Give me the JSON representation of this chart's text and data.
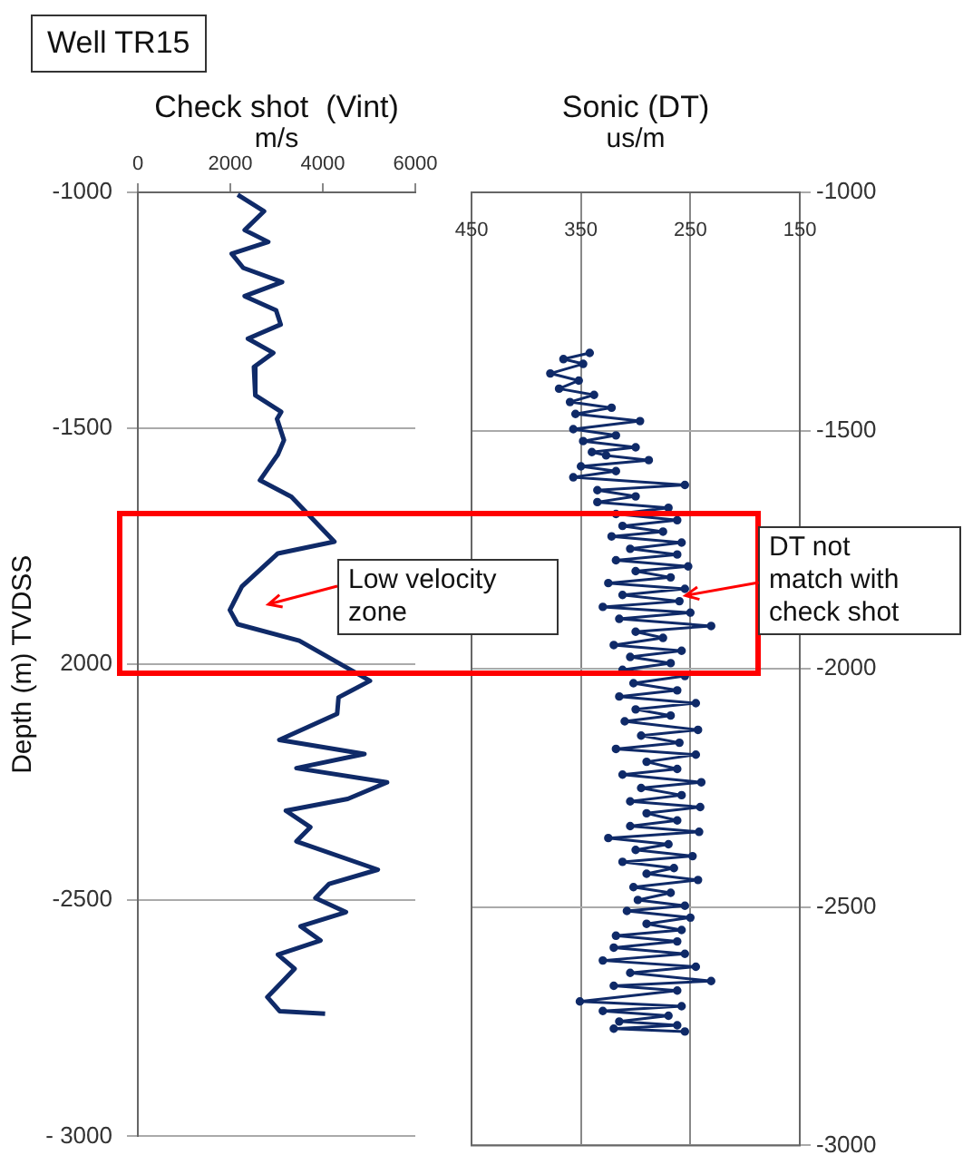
{
  "chart_data": [
    {
      "type": "line",
      "title": "Check shot  (Vint)",
      "xlabel": "m/s",
      "ylabel": "Depth (m) TVDSS",
      "series": [
        {
          "color": "#0f2a68",
          "x": [
            2160,
            2730,
            2310,
            2820,
            2030,
            2280,
            3120,
            2310,
            2990,
            3090,
            2380,
            2930,
            2510,
            2540,
            3100,
            3010,
            3160,
            3030,
            2640,
            3320,
            4250,
            3030,
            2250,
            1990,
            2160,
            3490,
            5020,
            4340,
            4310,
            3060,
            4900,
            3430,
            5390,
            4540,
            3200,
            3730,
            3430,
            5190,
            4140,
            3840,
            4500,
            3520,
            3950,
            3030,
            3390,
            3100,
            2800,
            3070,
            4050
          ],
          "values": [
            -1005,
            -1040,
            -1080,
            -1105,
            -1130,
            -1160,
            -1190,
            -1220,
            -1250,
            -1280,
            -1310,
            -1340,
            -1370,
            -1430,
            -1465,
            -1480,
            -1525,
            -1555,
            -1610,
            -1645,
            -1740,
            -1765,
            -1835,
            -1885,
            -1915,
            -1950,
            -2035,
            -2070,
            -2105,
            -2160,
            -2190,
            -2220,
            -2250,
            -2285,
            -2310,
            -2345,
            -2375,
            -2435,
            -2465,
            -2495,
            -2525,
            -2555,
            -2585,
            -2615,
            -2645,
            -2675,
            -2705,
            -2735,
            -2740
          ]
        }
      ],
      "xlim": [
        0,
        6000
      ],
      "xticks": [
        0,
        2000,
        4000,
        6000
      ],
      "ylim": [
        -3000,
        -1000
      ],
      "yticks": [
        -1000,
        -1500,
        {
          "value": -2000,
          "label": "2000"
        },
        -2500,
        {
          "value": -3000,
          "label": "- 3000"
        }
      ],
      "grid": "y",
      "marker": "none",
      "annotations": [
        "Well TR15",
        "Low velocity zone"
      ]
    },
    {
      "type": "line",
      "title": "Sonic (DT)",
      "xlabel": "us/m",
      "series": [
        {
          "color": "#0f2a68",
          "x": [
            342,
            366,
            348,
            378,
            352,
            370,
            338,
            360,
            322,
            355,
            296,
            357,
            318,
            348,
            300,
            340,
            327,
            288,
            350,
            318,
            357,
            255,
            335,
            300,
            335,
            270,
            318,
            262,
            312,
            275,
            322,
            258,
            305,
            262,
            318,
            252,
            300,
            268,
            325,
            255,
            312,
            260,
            330,
            250,
            315,
            231,
            300,
            275,
            320,
            258,
            305,
            268,
            312,
            255,
            302,
            262,
            315,
            245,
            300,
            268,
            310,
            243,
            295,
            260,
            318,
            245,
            290,
            262,
            312,
            240,
            295,
            258,
            305,
            241,
            290,
            262,
            305,
            242,
            325,
            270,
            300,
            248,
            312,
            265,
            290,
            243,
            302,
            268,
            298,
            255,
            308,
            250,
            290,
            258,
            318,
            262,
            320,
            255,
            330,
            245,
            305,
            231,
            320,
            262,
            351,
            258,
            330,
            270,
            315,
            262,
            320,
            255
          ],
          "values": [
            -1337,
            -1350,
            -1360,
            -1380,
            -1395,
            -1412,
            -1425,
            -1440,
            -1452,
            -1465,
            -1480,
            -1497,
            -1510,
            -1522,
            -1535,
            -1545,
            -1552,
            -1562,
            -1575,
            -1585,
            -1598,
            -1614,
            -1625,
            -1638,
            -1650,
            -1662,
            -1675,
            -1688,
            -1700,
            -1712,
            -1722,
            -1735,
            -1748,
            -1760,
            -1772,
            -1785,
            -1795,
            -1808,
            -1820,
            -1832,
            -1845,
            -1858,
            -1870,
            -1882,
            -1895,
            -1910,
            -1922,
            -1935,
            -1950,
            -1962,
            -1975,
            -1988,
            -2002,
            -2015,
            -2030,
            -2045,
            -2058,
            -2072,
            -2085,
            -2098,
            -2110,
            -2128,
            -2140,
            -2155,
            -2168,
            -2180,
            -2195,
            -2210,
            -2222,
            -2238,
            -2250,
            -2265,
            -2278,
            -2290,
            -2303,
            -2318,
            -2330,
            -2342,
            -2355,
            -2368,
            -2380,
            -2393,
            -2405,
            -2418,
            -2430,
            -2443,
            -2458,
            -2470,
            -2485,
            -2497,
            -2508,
            -2522,
            -2535,
            -2548,
            -2560,
            -2572,
            -2585,
            -2598,
            -2612,
            -2625,
            -2638,
            -2655,
            -2665,
            -2675,
            -2698,
            -2708,
            -2718,
            -2728,
            -2740,
            -2748,
            -2755,
            -2761
          ]
        }
      ],
      "xlim": [
        450,
        150
      ],
      "xticks": [
        450,
        350,
        250,
        150
      ],
      "ylim": [
        -3000,
        -1000
      ],
      "yticks": [
        -1000,
        -1500,
        -2000,
        -2500,
        -3000
      ],
      "grid": true,
      "marker": "circle",
      "annotations": [
        {
          "text": "DT not match with check shot",
          "x": 255,
          "y": -1846
        }
      ]
    }
  ]
}
